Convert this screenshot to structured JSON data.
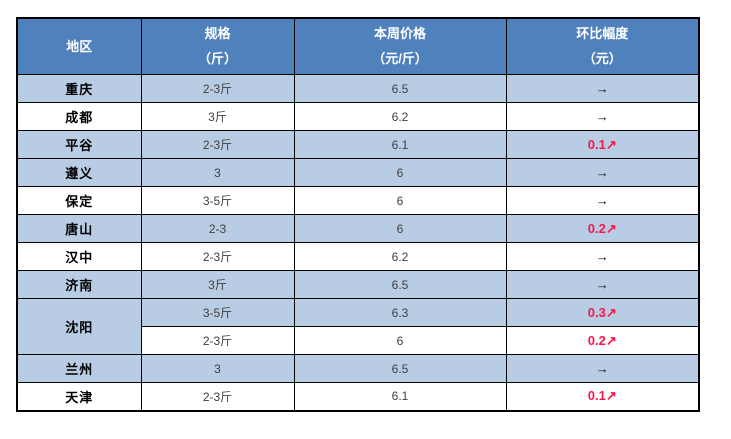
{
  "colors": {
    "header_bg": "#4f81bd",
    "header_text": "#ffffff",
    "shaded_row_bg": "#b8cce4",
    "plain_row_bg": "#ffffff",
    "border": "#000000",
    "value_text": "#3f3f3f",
    "flat_arrow": "#10101e",
    "up_value": "#f8174d"
  },
  "table": {
    "columns": [
      {
        "line1": "地区",
        "line2": ""
      },
      {
        "line1": "规格",
        "line2": "（斤）"
      },
      {
        "line1": "本周价格",
        "line2": "（元/斤）"
      },
      {
        "line1": "环比幅度",
        "line2": "（元）"
      }
    ],
    "rows": [
      {
        "region": "重庆",
        "spec": "2-3斤",
        "price": "6.5",
        "change": "→",
        "trend": "flat",
        "shaded": true
      },
      {
        "region": "成都",
        "spec": "3斤",
        "price": "6.2",
        "change": "→",
        "trend": "flat",
        "shaded": false
      },
      {
        "region": "平谷",
        "spec": "2-3斤",
        "price": "6.1",
        "change": "0.1↗",
        "trend": "up",
        "shaded": true
      },
      {
        "region": "遵义",
        "spec": "3",
        "price": "6",
        "change": "→",
        "trend": "flat",
        "shaded": true
      },
      {
        "region": "保定",
        "spec": "3-5斤",
        "price": "6",
        "change": "→",
        "trend": "flat",
        "shaded": false
      },
      {
        "region": "唐山",
        "spec": "2-3",
        "price": "6",
        "change": "0.2↗",
        "trend": "up",
        "shaded": true
      },
      {
        "region": "汉中",
        "spec": "2-3斤",
        "price": "6.2",
        "change": "→",
        "trend": "flat",
        "shaded": false
      },
      {
        "region": "济南",
        "spec": "3斤",
        "price": "6.5",
        "change": "→",
        "trend": "flat",
        "shaded": true
      },
      {
        "region": "沈阳",
        "region_rowspan": 2,
        "region_shaded": true,
        "spec": "3-5斤",
        "price": "6.3",
        "change": "0.3↗",
        "trend": "up",
        "shaded": true
      },
      {
        "region": null,
        "spec": "2-3斤",
        "price": "6",
        "change": "0.2↗",
        "trend": "up",
        "shaded": false
      },
      {
        "region": "兰州",
        "spec": "3",
        "price": "6.5",
        "change": "→",
        "trend": "flat",
        "shaded": true
      },
      {
        "region": "天津",
        "spec": "2-3斤",
        "price": "6.1",
        "change": "0.1↗",
        "trend": "up",
        "shaded": false
      }
    ]
  },
  "chart_data": {
    "type": "table",
    "title": "",
    "columns": [
      "地区",
      "规格（斤）",
      "本周价格（元/斤）",
      "环比幅度（元）"
    ],
    "rows": [
      [
        "重庆",
        "2-3斤",
        6.5,
        "→ 0"
      ],
      [
        "成都",
        "3斤",
        6.2,
        "→ 0"
      ],
      [
        "平谷",
        "2-3斤",
        6.1,
        "↗ +0.1"
      ],
      [
        "遵义",
        "3",
        6.0,
        "→ 0"
      ],
      [
        "保定",
        "3-5斤",
        6.0,
        "→ 0"
      ],
      [
        "唐山",
        "2-3",
        6.0,
        "↗ +0.2"
      ],
      [
        "汉中",
        "2-3斤",
        6.2,
        "→ 0"
      ],
      [
        "济南",
        "3斤",
        6.5,
        "→ 0"
      ],
      [
        "沈阳",
        "3-5斤",
        6.3,
        "↗ +0.3"
      ],
      [
        "沈阳",
        "2-3斤",
        6.0,
        "↗ +0.2"
      ],
      [
        "兰州",
        "3",
        6.5,
        "→ 0"
      ],
      [
        "天津",
        "2-3斤",
        6.1,
        "↗ +0.1"
      ]
    ]
  }
}
